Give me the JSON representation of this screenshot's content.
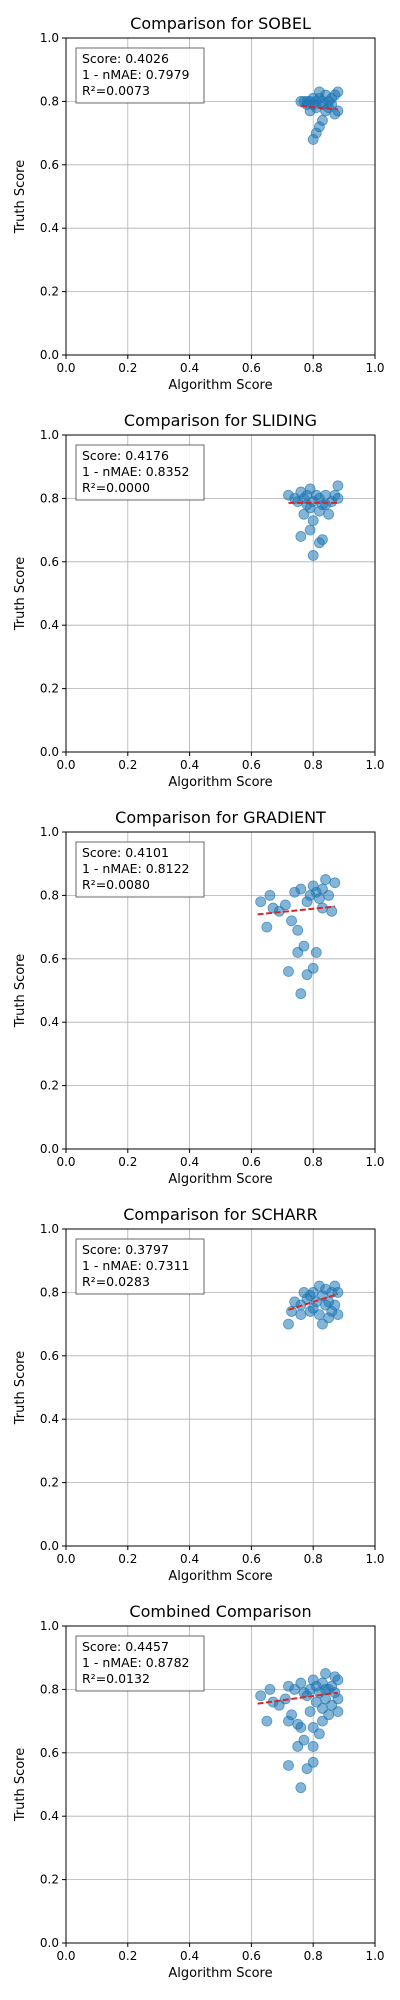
{
  "chart_data": [
    {
      "type": "scatter",
      "title": "Comparison for SOBEL",
      "xlabel": "Algorithm Score",
      "ylabel": "Truth Score",
      "xlim": [
        0,
        1
      ],
      "ylim": [
        0,
        1
      ],
      "xticks": [
        "0.0",
        "0.2",
        "0.4",
        "0.6",
        "0.8",
        "1.0"
      ],
      "yticks": [
        "0.0",
        "0.2",
        "0.4",
        "0.6",
        "0.8",
        "1.0"
      ],
      "grid": true,
      "stats": [
        "Score: 0.4026",
        "1 - nMAE: 0.7979",
        "R²=0.0073"
      ],
      "stats_box_placement": "top-left",
      "point_color": "#1f77b4",
      "trend_color": "#d62728",
      "points": [
        [
          0.76,
          0.8
        ],
        [
          0.77,
          0.8
        ],
        [
          0.78,
          0.79
        ],
        [
          0.79,
          0.8
        ],
        [
          0.79,
          0.77
        ],
        [
          0.8,
          0.79
        ],
        [
          0.8,
          0.81
        ],
        [
          0.81,
          0.8
        ],
        [
          0.81,
          0.78
        ],
        [
          0.82,
          0.83
        ],
        [
          0.82,
          0.81
        ],
        [
          0.83,
          0.8
        ],
        [
          0.83,
          0.79
        ],
        [
          0.84,
          0.82
        ],
        [
          0.84,
          0.77
        ],
        [
          0.85,
          0.78
        ],
        [
          0.86,
          0.81
        ],
        [
          0.87,
          0.82
        ],
        [
          0.88,
          0.83
        ],
        [
          0.88,
          0.77
        ],
        [
          0.87,
          0.76
        ],
        [
          0.8,
          0.68
        ],
        [
          0.81,
          0.7
        ],
        [
          0.82,
          0.72
        ],
        [
          0.83,
          0.74
        ],
        [
          0.78,
          0.8
        ],
        [
          0.85,
          0.8
        ],
        [
          0.86,
          0.79
        ]
      ],
      "trend": [
        [
          0.76,
          0.785
        ],
        [
          0.88,
          0.775
        ]
      ]
    },
    {
      "type": "scatter",
      "title": "Comparison for SLIDING",
      "xlabel": "Algorithm Score",
      "ylabel": "Truth Score",
      "xlim": [
        0,
        1
      ],
      "ylim": [
        0,
        1
      ],
      "xticks": [
        "0.0",
        "0.2",
        "0.4",
        "0.6",
        "0.8",
        "1.0"
      ],
      "yticks": [
        "0.0",
        "0.2",
        "0.4",
        "0.6",
        "0.8",
        "1.0"
      ],
      "grid": true,
      "stats": [
        "Score: 0.4176",
        "1 - nMAE: 0.8352",
        "R²=0.0000"
      ],
      "stats_box_placement": "top-left",
      "point_color": "#1f77b4",
      "trend_color": "#d62728",
      "points": [
        [
          0.72,
          0.81
        ],
        [
          0.74,
          0.8
        ],
        [
          0.75,
          0.79
        ],
        [
          0.76,
          0.82
        ],
        [
          0.77,
          0.8
        ],
        [
          0.78,
          0.81
        ],
        [
          0.78,
          0.78
        ],
        [
          0.79,
          0.83
        ],
        [
          0.79,
          0.77
        ],
        [
          0.8,
          0.79
        ],
        [
          0.8,
          0.73
        ],
        [
          0.81,
          0.81
        ],
        [
          0.82,
          0.8
        ],
        [
          0.82,
          0.76
        ],
        [
          0.83,
          0.78
        ],
        [
          0.83,
          0.67
        ],
        [
          0.84,
          0.81
        ],
        [
          0.85,
          0.75
        ],
        [
          0.86,
          0.79
        ],
        [
          0.87,
          0.81
        ],
        [
          0.88,
          0.84
        ],
        [
          0.88,
          0.8
        ],
        [
          0.79,
          0.7
        ],
        [
          0.8,
          0.62
        ],
        [
          0.76,
          0.68
        ],
        [
          0.82,
          0.66
        ],
        [
          0.77,
          0.75
        ],
        [
          0.84,
          0.78
        ]
      ],
      "trend": [
        [
          0.72,
          0.786
        ],
        [
          0.88,
          0.786
        ]
      ]
    },
    {
      "type": "scatter",
      "title": "Comparison for GRADIENT",
      "xlabel": "Algorithm Score",
      "ylabel": "Truth Score",
      "xlim": [
        0,
        1
      ],
      "ylim": [
        0,
        1
      ],
      "xticks": [
        "0.0",
        "0.2",
        "0.4",
        "0.6",
        "0.8",
        "1.0"
      ],
      "yticks": [
        "0.0",
        "0.2",
        "0.4",
        "0.6",
        "0.8",
        "1.0"
      ],
      "grid": true,
      "stats": [
        "Score: 0.4101",
        "1 - nMAE: 0.8122",
        "R²=0.0080"
      ],
      "stats_box_placement": "top-left",
      "point_color": "#1f77b4",
      "trend_color": "#d62728",
      "points": [
        [
          0.63,
          0.78
        ],
        [
          0.65,
          0.7
        ],
        [
          0.66,
          0.8
        ],
        [
          0.67,
          0.76
        ],
        [
          0.69,
          0.75
        ],
        [
          0.71,
          0.77
        ],
        [
          0.73,
          0.72
        ],
        [
          0.74,
          0.81
        ],
        [
          0.75,
          0.69
        ],
        [
          0.75,
          0.62
        ],
        [
          0.76,
          0.82
        ],
        [
          0.77,
          0.64
        ],
        [
          0.78,
          0.78
        ],
        [
          0.78,
          0.55
        ],
        [
          0.79,
          0.8
        ],
        [
          0.8,
          0.83
        ],
        [
          0.8,
          0.57
        ],
        [
          0.81,
          0.81
        ],
        [
          0.81,
          0.62
        ],
        [
          0.82,
          0.79
        ],
        [
          0.83,
          0.82
        ],
        [
          0.83,
          0.76
        ],
        [
          0.84,
          0.85
        ],
        [
          0.85,
          0.8
        ],
        [
          0.86,
          0.75
        ],
        [
          0.87,
          0.84
        ],
        [
          0.76,
          0.49
        ],
        [
          0.72,
          0.56
        ]
      ],
      "trend": [
        [
          0.62,
          0.74
        ],
        [
          0.87,
          0.765
        ]
      ]
    },
    {
      "type": "scatter",
      "title": "Comparison for SCHARR",
      "xlabel": "Algorithm Score",
      "ylabel": "Truth Score",
      "xlim": [
        0,
        1
      ],
      "ylim": [
        0,
        1
      ],
      "xticks": [
        "0.0",
        "0.2",
        "0.4",
        "0.6",
        "0.8",
        "1.0"
      ],
      "yticks": [
        "0.0",
        "0.2",
        "0.4",
        "0.6",
        "0.8",
        "1.0"
      ],
      "grid": true,
      "stats": [
        "Score: 0.3797",
        "1 - nMAE: 0.7311",
        "R²=0.0283"
      ],
      "stats_box_placement": "top-left",
      "point_color": "#1f77b4",
      "trend_color": "#d62728",
      "points": [
        [
          0.72,
          0.7
        ],
        [
          0.73,
          0.74
        ],
        [
          0.74,
          0.77
        ],
        [
          0.76,
          0.76
        ],
        [
          0.77,
          0.8
        ],
        [
          0.78,
          0.78
        ],
        [
          0.79,
          0.79
        ],
        [
          0.79,
          0.74
        ],
        [
          0.8,
          0.8
        ],
        [
          0.81,
          0.77
        ],
        [
          0.82,
          0.82
        ],
        [
          0.82,
          0.73
        ],
        [
          0.83,
          0.79
        ],
        [
          0.83,
          0.7
        ],
        [
          0.84,
          0.81
        ],
        [
          0.85,
          0.77
        ],
        [
          0.85,
          0.72
        ],
        [
          0.86,
          0.8
        ],
        [
          0.87,
          0.82
        ],
        [
          0.87,
          0.76
        ],
        [
          0.88,
          0.73
        ],
        [
          0.88,
          0.8
        ],
        [
          0.84,
          0.76
        ],
        [
          0.8,
          0.75
        ],
        [
          0.76,
          0.73
        ],
        [
          0.86,
          0.74
        ]
      ],
      "trend": [
        [
          0.72,
          0.745
        ],
        [
          0.88,
          0.795
        ]
      ]
    },
    {
      "type": "scatter",
      "title": "Combined Comparison",
      "xlabel": "Algorithm Score",
      "ylabel": "Truth Score",
      "xlim": [
        0,
        1
      ],
      "ylim": [
        0,
        1
      ],
      "xticks": [
        "0.0",
        "0.2",
        "0.4",
        "0.6",
        "0.8",
        "1.0"
      ],
      "yticks": [
        "0.0",
        "0.2",
        "0.4",
        "0.6",
        "0.8",
        "1.0"
      ],
      "grid": true,
      "stats": [
        "Score: 0.4457",
        "1 - nMAE: 0.8782",
        "R²=0.0132"
      ],
      "stats_box_placement": "top-left",
      "point_color": "#1f77b4",
      "trend_color": "#d62728",
      "points": [
        [
          0.63,
          0.78
        ],
        [
          0.65,
          0.7
        ],
        [
          0.66,
          0.8
        ],
        [
          0.67,
          0.76
        ],
        [
          0.69,
          0.75
        ],
        [
          0.71,
          0.77
        ],
        [
          0.72,
          0.81
        ],
        [
          0.72,
          0.7
        ],
        [
          0.73,
          0.72
        ],
        [
          0.74,
          0.8
        ],
        [
          0.75,
          0.62
        ],
        [
          0.75,
          0.69
        ],
        [
          0.76,
          0.82
        ],
        [
          0.76,
          0.68
        ],
        [
          0.77,
          0.64
        ],
        [
          0.77,
          0.79
        ],
        [
          0.78,
          0.78
        ],
        [
          0.78,
          0.55
        ],
        [
          0.79,
          0.8
        ],
        [
          0.79,
          0.73
        ],
        [
          0.8,
          0.83
        ],
        [
          0.8,
          0.57
        ],
        [
          0.8,
          0.62
        ],
        [
          0.81,
          0.81
        ],
        [
          0.81,
          0.76
        ],
        [
          0.82,
          0.79
        ],
        [
          0.82,
          0.66
        ],
        [
          0.83,
          0.82
        ],
        [
          0.83,
          0.7
        ],
        [
          0.84,
          0.85
        ],
        [
          0.84,
          0.77
        ],
        [
          0.85,
          0.8
        ],
        [
          0.85,
          0.72
        ],
        [
          0.86,
          0.75
        ],
        [
          0.86,
          0.81
        ],
        [
          0.87,
          0.84
        ],
        [
          0.87,
          0.79
        ],
        [
          0.88,
          0.83
        ],
        [
          0.88,
          0.77
        ],
        [
          0.88,
          0.73
        ],
        [
          0.76,
          0.49
        ],
        [
          0.72,
          0.56
        ],
        [
          0.83,
          0.74
        ],
        [
          0.8,
          0.68
        ],
        [
          0.84,
          0.8
        ]
      ],
      "trend": [
        [
          0.62,
          0.755
        ],
        [
          0.88,
          0.79
        ]
      ]
    }
  ]
}
